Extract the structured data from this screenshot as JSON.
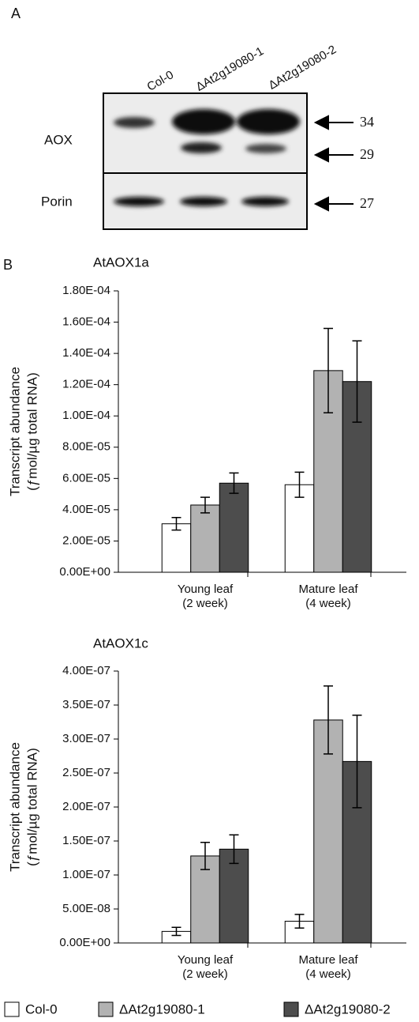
{
  "panels": [
    "A",
    "B"
  ],
  "blot": {
    "lanes": [
      "Col-0",
      "ΔAt2g19080-1",
      "ΔAt2g19080-2"
    ],
    "rows": [
      "AOX",
      "Porin"
    ],
    "markers": [
      "34",
      "29",
      "27"
    ]
  },
  "chart_data": [
    {
      "type": "bar",
      "title": "AtAOX1a",
      "ylabel": [
        "Transcript abundance",
        "(ƒmol/µg total RNA)"
      ],
      "categories": [
        [
          "Young leaf",
          "(2 week)"
        ],
        [
          "Mature leaf",
          "(4 week)"
        ]
      ],
      "series": [
        {
          "name": "Col-0",
          "color": "#ffffff",
          "values": [
            3.1e-05,
            5.6e-05
          ],
          "errors": [
            4e-06,
            8e-06
          ]
        },
        {
          "name": "ΔAt2g19080-1",
          "color": "#b2b2b2",
          "values": [
            4.3e-05,
            0.000129
          ],
          "errors": [
            5e-06,
            2.7e-05
          ]
        },
        {
          "name": "ΔAt2g19080-2",
          "color": "#4d4d4d",
          "values": [
            5.7e-05,
            0.000122
          ],
          "errors": [
            6.5e-06,
            2.6e-05
          ]
        }
      ],
      "ylim": [
        0,
        0.00018
      ],
      "yticks": [
        {
          "value": 0,
          "label": "0.00E+00"
        },
        {
          "value": 2e-05,
          "label": "2.00E-05"
        },
        {
          "value": 4e-05,
          "label": "4.00E-05"
        },
        {
          "value": 6e-05,
          "label": "6.00E-05"
        },
        {
          "value": 8e-05,
          "label": "8.00E-05"
        },
        {
          "value": 0.0001,
          "label": "1.00E-04"
        },
        {
          "value": 0.00012,
          "label": "1.20E-04"
        },
        {
          "value": 0.00014,
          "label": "1.40E-04"
        },
        {
          "value": 0.00016,
          "label": "1.60E-04"
        },
        {
          "value": 0.00018,
          "label": "1.80E-04"
        }
      ]
    },
    {
      "type": "bar",
      "title": "AtAOX1c",
      "ylabel": [
        "Transcript abundance",
        "(ƒmol/µg total RNA)"
      ],
      "categories": [
        [
          "Young leaf",
          "(2 week)"
        ],
        [
          "Mature leaf",
          "(4 week)"
        ]
      ],
      "series": [
        {
          "color": "#ffffff",
          "values": [
            1.7e-08,
            3.2e-08
          ],
          "errors": [
            6e-09,
            1e-08
          ]
        },
        {
          "color": "#b2b2b2",
          "values": [
            1.28e-07,
            3.28e-07
          ],
          "errors": [
            2e-08,
            5e-08
          ]
        },
        {
          "color": "#4d4d4d",
          "values": [
            1.38e-07,
            2.67e-07
          ],
          "errors": [
            2.1e-08,
            6.8e-08
          ]
        }
      ],
      "ylim": [
        0,
        4e-07
      ],
      "yticks": [
        {
          "value": 0,
          "label": "0.00E+00"
        },
        {
          "value": 5e-08,
          "label": "5.00E-08"
        },
        {
          "value": 1e-07,
          "label": "1.00E-07"
        },
        {
          "value": 1.5e-07,
          "label": "1.50E-07"
        },
        {
          "value": 2e-07,
          "label": "2.00E-07"
        },
        {
          "value": 2.5e-07,
          "label": "2.50E-07"
        },
        {
          "value": 3e-07,
          "label": "3.00E-07"
        },
        {
          "value": 3.5e-07,
          "label": "3.50E-07"
        },
        {
          "value": 4e-07,
          "label": "4.00E-07"
        }
      ]
    }
  ]
}
